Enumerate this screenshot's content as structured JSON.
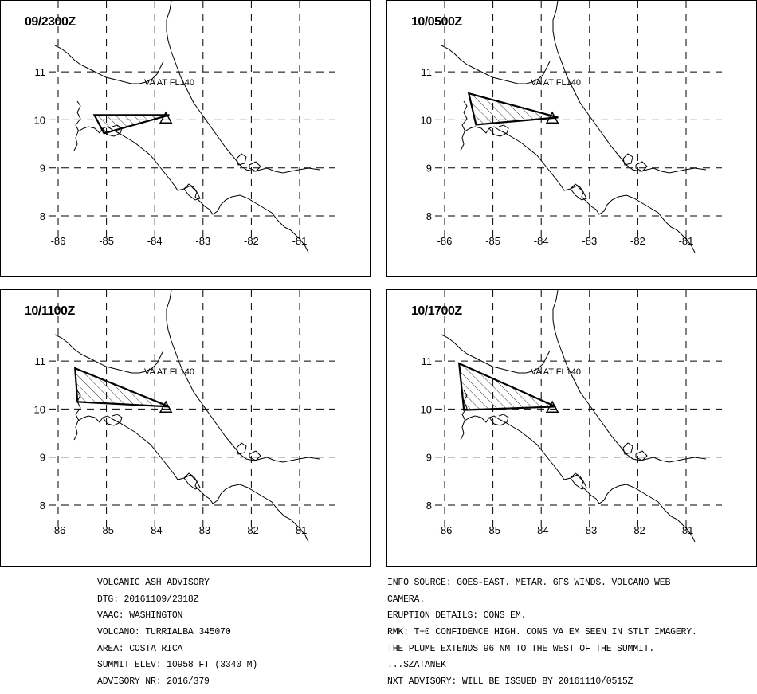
{
  "panels": [
    {
      "time": "09/2300Z",
      "label": "VA AT FL140",
      "polygon": [
        [
          -85.25,
          10.1
        ],
        [
          -83.7,
          10.1
        ],
        [
          -85.05,
          9.72
        ]
      ]
    },
    {
      "time": "10/0500Z",
      "label": "VA AT FL140",
      "polygon": [
        [
          -85.5,
          10.55
        ],
        [
          -83.65,
          10.05
        ],
        [
          -85.35,
          9.9
        ]
      ]
    },
    {
      "time": "10/1100Z",
      "label": "VA AT FL140",
      "polygon": [
        [
          -85.65,
          10.85
        ],
        [
          -83.7,
          10.05
        ],
        [
          -85.6,
          10.15
        ]
      ]
    },
    {
      "time": "10/1700Z",
      "label": "VA AT FL140",
      "polygon": [
        [
          -85.7,
          10.95
        ],
        [
          -83.7,
          10.05
        ],
        [
          -85.6,
          9.98
        ]
      ]
    }
  ],
  "map": {
    "lon_ticks": [
      "-86",
      "-85",
      "-84",
      "-83",
      "-82",
      "-81"
    ],
    "lat_ticks": [
      "11",
      "10",
      "9",
      "8"
    ],
    "volcano_lon": -83.77,
    "volcano_lat": 10.02
  },
  "advisory_left": [
    "VOLCANIC ASH ADVISORY",
    "DTG: 20161109/2318Z",
    "VAAC: WASHINGTON",
    "VOLCANO: TURRIALBA 345070",
    "AREA: COSTA RICA",
    "SUMMIT ELEV: 10958 FT (3340 M)",
    "ADVISORY NR: 2016/379"
  ],
  "advisory_right": [
    "INFO SOURCE: GOES-EAST. METAR. GFS WINDS. VOLCANO WEB",
    "CAMERA.",
    "ERUPTION DETAILS: CONS EM.",
    "RMK: T+0 CONFIDENCE HIGH. CONS VA EM SEEN IN STLT IMAGERY.",
    "THE PLUME EXTENDS 96 NM TO THE WEST OF THE SUMMIT.",
    "...SZATANEK",
    "NXT ADVISORY: WILL BE ISSUED BY 20161110/0515Z"
  ]
}
